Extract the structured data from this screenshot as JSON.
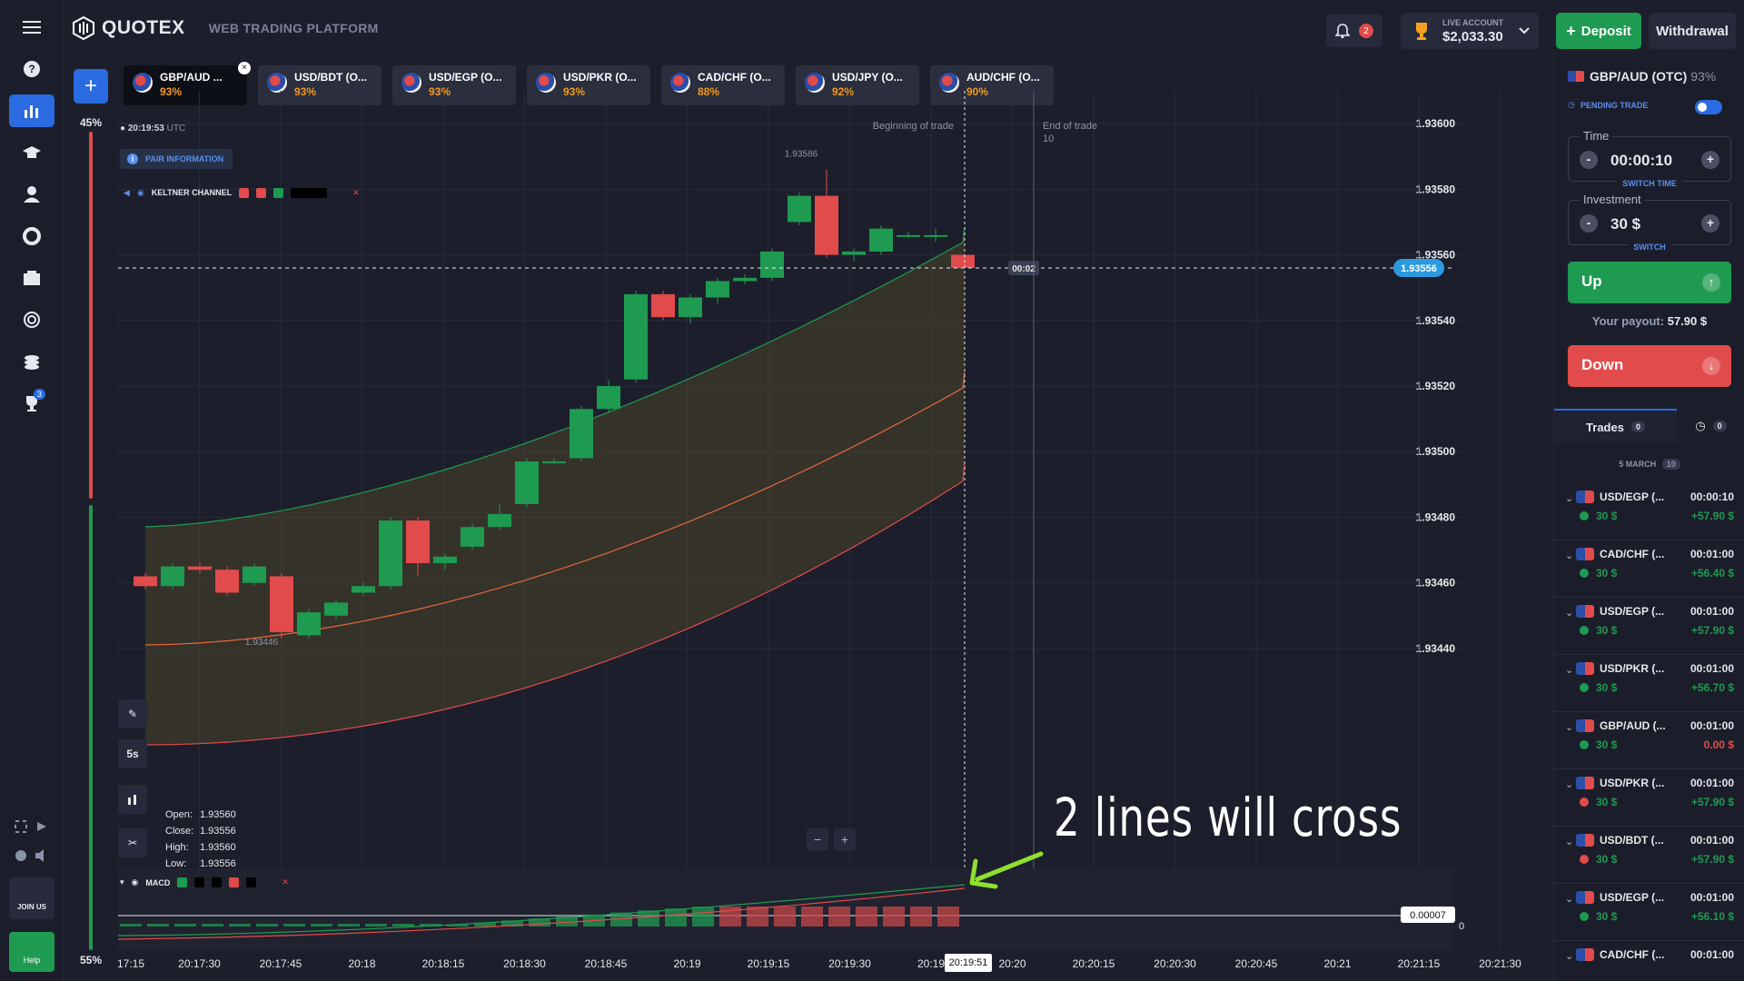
{
  "app": {
    "name": "QUOTEX",
    "subtitle": "WEB TRADING PLATFORM"
  },
  "header": {
    "notifications_count": "2",
    "account_label": "LIVE ACCOUNT",
    "balance": "$2,033.30",
    "deposit_label": "Deposit",
    "withdrawal_label": "Withdrawal"
  },
  "sidebar": {
    "tournaments_badge": "3",
    "join_label": "JOIN US",
    "help_label": "Help"
  },
  "tabs": [
    {
      "name": "GBP/AUD ...",
      "pct": "93%"
    },
    {
      "name": "USD/BDT (O...",
      "pct": "93%"
    },
    {
      "name": "USD/EGP (O...",
      "pct": "93%"
    },
    {
      "name": "USD/PKR (O...",
      "pct": "93%"
    },
    {
      "name": "CAD/CHF (O...",
      "pct": "88%"
    },
    {
      "name": "USD/JPY (O...",
      "pct": "92%"
    },
    {
      "name": "AUD/CHF (O...",
      "pct": "90%"
    }
  ],
  "chart": {
    "clock": "20:19:53",
    "tz": "UTC",
    "pair_info": "PAIR INFORMATION",
    "indicator": "KELTNER CHANNEL",
    "macd": "MACD",
    "sentiment_up": "45%",
    "sentiment_down": "55%",
    "begin_trade": "Beginning of trade",
    "end_trade": "End of trade",
    "end_trade_sub": "10",
    "countdown": "00:02",
    "current_price": "1.93556",
    "high_marker": "1.93586",
    "low_marker": "1.93446",
    "timeframe": "5s",
    "ohlc": {
      "open": "1.93560",
      "close": "1.93556",
      "high": "1.93560",
      "low": "1.93556"
    },
    "ohlc_labels": {
      "open": "Open:",
      "close": "Close:",
      "high": "High:",
      "low": "Low:"
    },
    "macd_value": "0.00007",
    "macd_zero": "0",
    "annotation": "2 lines will cross",
    "cursor_time": "20:19:51",
    "y_ticks": [
      "1.93600",
      "1.93580",
      "1.93560",
      "1.93540",
      "1.93520",
      "1.93500",
      "1.93480",
      "1.93460",
      "1.93440"
    ],
    "x_ticks": [
      "17:15",
      "20:17:30",
      "20:17:45",
      "20:18",
      "20:18:15",
      "20:18:30",
      "20:18:45",
      "20:19",
      "20:19:15",
      "20:19:30",
      "20:19",
      "20:20",
      "20:20:15",
      "20:20:30",
      "20:20:45",
      "20:21",
      "20:21:15",
      "20:21:30"
    ]
  },
  "chart_data": {
    "type": "candlestick",
    "ylim": [
      1.9343,
      1.9361
    ],
    "candles": [
      {
        "o": 1.93462,
        "c": 1.93459,
        "h": 1.93463,
        "l": 1.93458
      },
      {
        "o": 1.93459,
        "c": 1.93465,
        "h": 1.93466,
        "l": 1.93458
      },
      {
        "o": 1.93465,
        "c": 1.93464,
        "h": 1.93466,
        "l": 1.93463
      },
      {
        "o": 1.93464,
        "c": 1.93457,
        "h": 1.93465,
        "l": 1.93456
      },
      {
        "o": 1.9346,
        "c": 1.93465,
        "h": 1.93466,
        "l": 1.93459
      },
      {
        "o": 1.93462,
        "c": 1.93445,
        "h": 1.93463,
        "l": 1.93443
      },
      {
        "o": 1.93444,
        "c": 1.93451,
        "h": 1.93452,
        "l": 1.93443
      },
      {
        "o": 1.9345,
        "c": 1.93454,
        "h": 1.93455,
        "l": 1.93449
      },
      {
        "o": 1.93457,
        "c": 1.93459,
        "h": 1.9346,
        "l": 1.93456
      },
      {
        "o": 1.93459,
        "c": 1.93479,
        "h": 1.9348,
        "l": 1.93458
      },
      {
        "o": 1.93479,
        "c": 1.93466,
        "h": 1.9348,
        "l": 1.93462
      },
      {
        "o": 1.93466,
        "c": 1.93468,
        "h": 1.93469,
        "l": 1.93464
      },
      {
        "o": 1.93471,
        "c": 1.93477,
        "h": 1.93478,
        "l": 1.9347
      },
      {
        "o": 1.93477,
        "c": 1.93481,
        "h": 1.93484,
        "l": 1.93476
      },
      {
        "o": 1.93484,
        "c": 1.93497,
        "h": 1.93498,
        "l": 1.93483
      },
      {
        "o": 1.93497,
        "c": 1.93497,
        "h": 1.93498,
        "l": 1.93496
      },
      {
        "o": 1.93498,
        "c": 1.93513,
        "h": 1.93514,
        "l": 1.93497
      },
      {
        "o": 1.93513,
        "c": 1.9352,
        "h": 1.93522,
        "l": 1.93512
      },
      {
        "o": 1.93522,
        "c": 1.93548,
        "h": 1.93549,
        "l": 1.93521
      },
      {
        "o": 1.93548,
        "c": 1.93541,
        "h": 1.93549,
        "l": 1.9354
      },
      {
        "o": 1.93541,
        "c": 1.93547,
        "h": 1.93548,
        "l": 1.93539
      },
      {
        "o": 1.93547,
        "c": 1.93552,
        "h": 1.93553,
        "l": 1.93545
      },
      {
        "o": 1.93552,
        "c": 1.93553,
        "h": 1.93554,
        "l": 1.93551
      },
      {
        "o": 1.93553,
        "c": 1.93561,
        "h": 1.93562,
        "l": 1.93552
      },
      {
        "o": 1.9357,
        "c": 1.93578,
        "h": 1.93579,
        "l": 1.93569
      },
      {
        "o": 1.93578,
        "c": 1.9356,
        "h": 1.93586,
        "l": 1.93559
      },
      {
        "o": 1.9356,
        "c": 1.93561,
        "h": 1.93562,
        "l": 1.93558
      },
      {
        "o": 1.93561,
        "c": 1.93568,
        "h": 1.93569,
        "l": 1.9356
      },
      {
        "o": 1.93566,
        "c": 1.93566,
        "h": 1.93567,
        "l": 1.93565
      },
      {
        "o": 1.93566,
        "c": 1.93566,
        "h": 1.93568,
        "l": 1.93564
      },
      {
        "o": 1.9356,
        "c": 1.93556,
        "h": 1.9356,
        "l": 1.93556
      }
    ]
  },
  "panel": {
    "pair": "GBP/AUD (OTC)",
    "pair_pct": "93%",
    "pending_label": "PENDING TRADE",
    "time_label": "Time",
    "time_value": "00:00:10",
    "switch_time": "SWITCH TIME",
    "investment_label": "Investment",
    "investment_value": "30 $",
    "switch": "SWITCH",
    "up_label": "Up",
    "payout_label": "Your payout:",
    "payout_value": "57.90 $",
    "down_label": "Down",
    "trades_tab": "Trades",
    "trades_count": "0",
    "history_count": "0",
    "date_label": "5 MARCH",
    "date_count": "10",
    "trades": [
      {
        "pair": "USD/EGP (...",
        "time": "00:00:10",
        "inv": "30 $",
        "pay": "+57.90 $",
        "dir": "up"
      },
      {
        "pair": "CAD/CHF (...",
        "time": "00:01:00",
        "inv": "30 $",
        "pay": "+56.40 $",
        "dir": "up"
      },
      {
        "pair": "USD/EGP (...",
        "time": "00:01:00",
        "inv": "30 $",
        "pay": "+57.90 $",
        "dir": "up"
      },
      {
        "pair": "USD/PKR (...",
        "time": "00:01:00",
        "inv": "30 $",
        "pay": "+56.70 $",
        "dir": "up"
      },
      {
        "pair": "GBP/AUD (...",
        "time": "00:01:00",
        "inv": "30 $",
        "pay": "0.00 $",
        "dir": "up"
      },
      {
        "pair": "USD/PKR (...",
        "time": "00:01:00",
        "inv": "30 $",
        "pay": "+57.90 $",
        "dir": "down"
      },
      {
        "pair": "USD/BDT (...",
        "time": "00:01:00",
        "inv": "30 $",
        "pay": "+57.90 $",
        "dir": "down"
      },
      {
        "pair": "USD/EGP (...",
        "time": "00:01:00",
        "inv": "30 $",
        "pay": "+56.10 $",
        "dir": "up"
      },
      {
        "pair": "CAD/CHF (...",
        "time": "00:01:00",
        "inv": "",
        "pay": "",
        "dir": "up"
      }
    ]
  },
  "colors": {
    "up": "#1f9a51",
    "down": "#e24b4b",
    "accent": "#2b6be1",
    "bg": "#1c1f2b"
  }
}
